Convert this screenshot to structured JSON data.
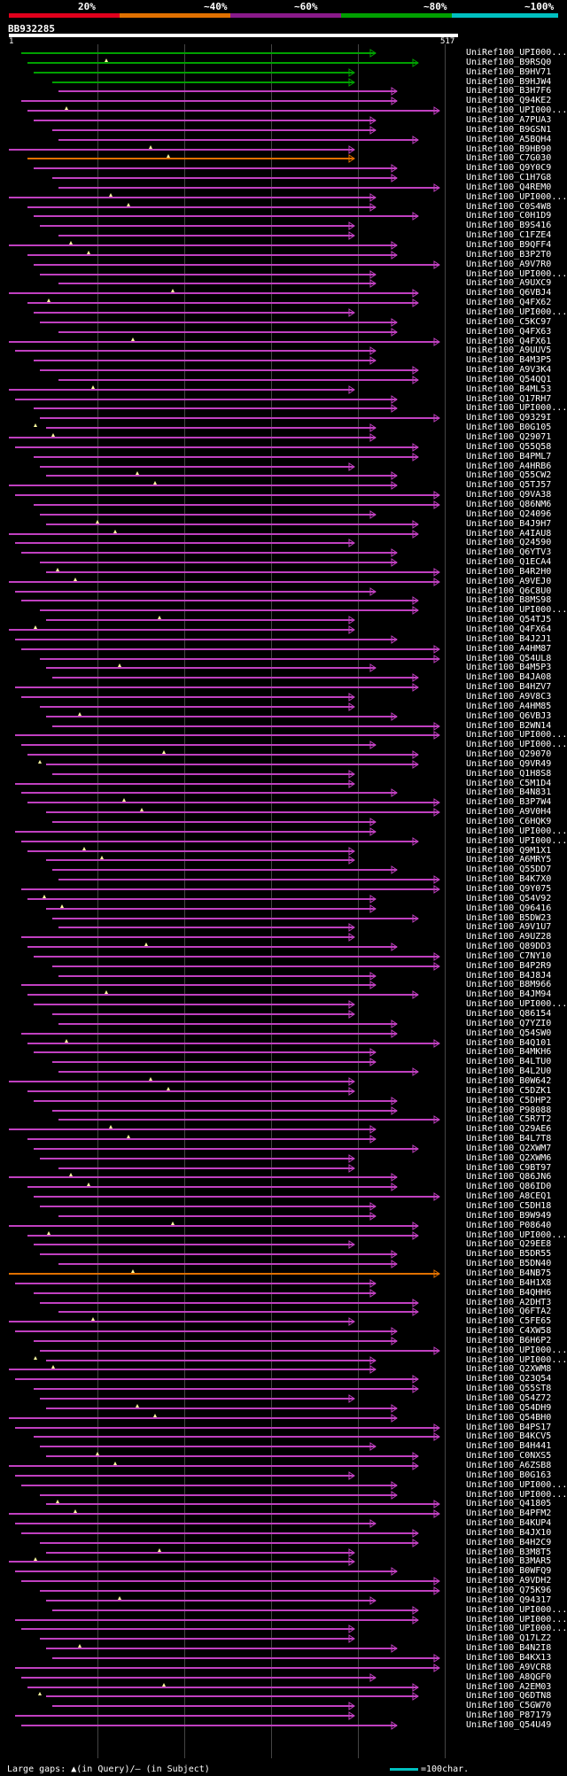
{
  "legend": {
    "labels": [
      "20%",
      "~40%",
      "~60%",
      "~80%",
      "~100%"
    ],
    "colors": [
      "#e0001c",
      "#e07000",
      "#8a1a8a",
      "#00a000",
      "#00c0c0"
    ]
  },
  "query": {
    "name": "BB932285",
    "start": "1",
    "length": "517"
  },
  "footer": {
    "text": "Large gaps: ▲(in Query)/– (in Subject)",
    "scale_label": "=100char."
  },
  "colors": {
    "background": "#000000",
    "magenta": "#c040c0",
    "green": "#00a000",
    "orange": "#e07000",
    "marker": "#ffffa0"
  },
  "hits": [
    "UniRef100_UPI000...",
    "UniRef100_B9RSQ0",
    "UniRef100_B9HV71",
    "UniRef100_B9HJW4",
    "UniRef100_B3H7F6",
    "UniRef100_Q94KE2",
    "UniRef100_UPI000...",
    "UniRef100_A7PUA3",
    "UniRef100_B9GSN1",
    "UniRef100_A5BQH4",
    "UniRef100_B9HB90",
    "UniRef100_C7G030",
    "UniRef100_Q9Y0C9",
    "UniRef100_C1H7G8",
    "UniRef100_Q4REM0",
    "UniRef100_UPI000...",
    "UniRef100_C0S4W8",
    "UniRef100_C0H1D9",
    "UniRef100_B9S416",
    "UniRef100_C1FZE4",
    "UniRef100_B9QFF4",
    "UniRef100_B3P2T0",
    "UniRef100_A9V7R0",
    "UniRef100_UPI000...",
    "UniRef100_A9UXC9",
    "UniRef100_Q6VBJ4",
    "UniRef100_Q4FX62",
    "UniRef100_UPI000...",
    "UniRef100_C5KC97",
    "UniRef100_Q4FX63",
    "UniRef100_Q4FX61",
    "UniRef100_A9UUV5",
    "UniRef100_B4M3P5",
    "UniRef100_A9V3K4",
    "UniRef100_Q54QQ1",
    "UniRef100_B4ML53",
    "UniRef100_Q17RH7",
    "UniRef100_UPI000...",
    "UniRef100_Q9329I",
    "UniRef100_B0G105",
    "UniRef100_Q29071",
    "UniRef100_Q55Q58",
    "UniRef100_B4PML7",
    "UniRef100_A4HRB6",
    "UniRef100_Q55CW2",
    "UniRef100_Q5TJ57",
    "UniRef100_Q9VA38",
    "UniRef100_Q86NM6",
    "UniRef100_Q24096",
    "UniRef100_B4J9H7",
    "UniRef100_A4IAU8",
    "UniRef100_Q24590",
    "UniRef100_Q6YTV3",
    "UniRef100_Q1ECA4",
    "UniRef100_B4R2H0",
    "UniRef100_A9VEJ0",
    "UniRef100_Q6C8U0",
    "UniRef100_B8MS98",
    "UniRef100_UPI000...",
    "UniRef100_Q54TJ5",
    "UniRef100_Q4FX64",
    "UniRef100_B4J2J1",
    "UniRef100_A4HM87",
    "UniRef100_Q54UL8",
    "UniRef100_B4M5P3",
    "UniRef100_B4JA08",
    "UniRef100_B4HZV7",
    "UniRef100_A9V8C3",
    "UniRef100_A4HM85",
    "UniRef100_Q6VBJ3",
    "UniRef100_B2WN14",
    "UniRef100_UPI000...",
    "UniRef100_UPI000...",
    "UniRef100_Q29070",
    "UniRef100_Q9VR49",
    "UniRef100_Q1H8S8",
    "UniRef100_C5M1D4",
    "UniRef100_B4N831",
    "UniRef100_B3P7W4",
    "UniRef100_A9V0H4",
    "UniRef100_C6HQK9",
    "UniRef100_UPI000...",
    "UniRef100_UPI000...",
    "UniRef100_Q9M1X1",
    "UniRef100_A6MRY5",
    "UniRef100_Q55DD7",
    "UniRef100_B4K7X0",
    "UniRef100_Q9Y075",
    "UniRef100_Q54V92",
    "UniRef100_Q96416",
    "UniRef100_B5DW23",
    "UniRef100_A9V1U7",
    "UniRef100_A9UZ28",
    "UniRef100_Q89DD3",
    "UniRef100_C7NY10",
    "UniRef100_B4P2R9",
    "UniRef100_B4J8J4",
    "UniRef100_B8M966",
    "UniRef100_B4JM94",
    "UniRef100_UPI000...",
    "UniRef100_Q86154",
    "UniRef100_Q7YZI0",
    "UniRef100_Q54SW0",
    "UniRef100_B4Q101",
    "UniRef100_B4MKH6",
    "UniRef100_B4LTU0",
    "UniRef100_B4L2U0",
    "UniRef100_B0W642",
    "UniRef100_C5DZK1",
    "UniRef100_C5DHP2",
    "UniRef100_P98088",
    "UniRef100_C5R7T2",
    "UniRef100_Q29AE6",
    "UniRef100_B4L7T8",
    "UniRef100_Q2XWM7",
    "UniRef100_Q2XWM6",
    "UniRef100_C9BT97",
    "UniRef100_Q86JN6",
    "UniRef100_Q86ID0",
    "UniRef100_A8CEQ1",
    "UniRef100_C5DH18",
    "UniRef100_B9W949",
    "UniRef100_P08640",
    "UniRef100_UPI000...",
    "UniRef100_Q29EE8",
    "UniRef100_B5DR55",
    "UniRef100_B5DN40",
    "UniRef100_B4NB75",
    "UniRef100_B4H1X8",
    "UniRef100_B4QHH6",
    "UniRef100_A2DHT3",
    "UniRef100_Q6FTA2",
    "UniRef100_C5FE65",
    "UniRef100_C4XW58",
    "UniRef100_B6H6P2",
    "UniRef100_UPI000...",
    "UniRef100_UPI000...",
    "UniRef100_Q2XWM8",
    "UniRef100_Q23Q54",
    "UniRef100_Q55ST8",
    "UniRef100_Q54Z72",
    "UniRef100_Q54DH9",
    "UniRef100_Q54BH0",
    "UniRef100_B4PS17",
    "UniRef100_B4KCV5",
    "UniRef100_B4H441",
    "UniRef100_C0NXS5",
    "UniRef100_A6ZSB8",
    "UniRef100_B0G163",
    "UniRef100_UPI000...",
    "UniRef100_UPI000...",
    "UniRef100_Q41805",
    "UniRef100_B4PFM2",
    "UniRef100_B4KUP4",
    "UniRef100_B4JX10",
    "UniRef100_B4H2C9",
    "UniRef100_B3M8T5",
    "UniRef100_B3MAR5",
    "UniRef100_B0WFQ9",
    "UniRef100_A9VDH2",
    "UniRef100_Q75K96",
    "UniRef100_Q94317",
    "UniRef100_UPI000...",
    "UniRef100_UPI000...",
    "UniRef100_UPI000...",
    "UniRef100_Q17LZ2",
    "UniRef100_B4N2I8",
    "UniRef100_B4KX13",
    "UniRef100_A9VCR8",
    "UniRef100_A8QGF0",
    "UniRef100_A2EM03",
    "UniRef100_Q6DTN8",
    "UniRef100_C5GW70",
    "UniRef100_P87179",
    "UniRef100_Q54U49"
  ]
}
